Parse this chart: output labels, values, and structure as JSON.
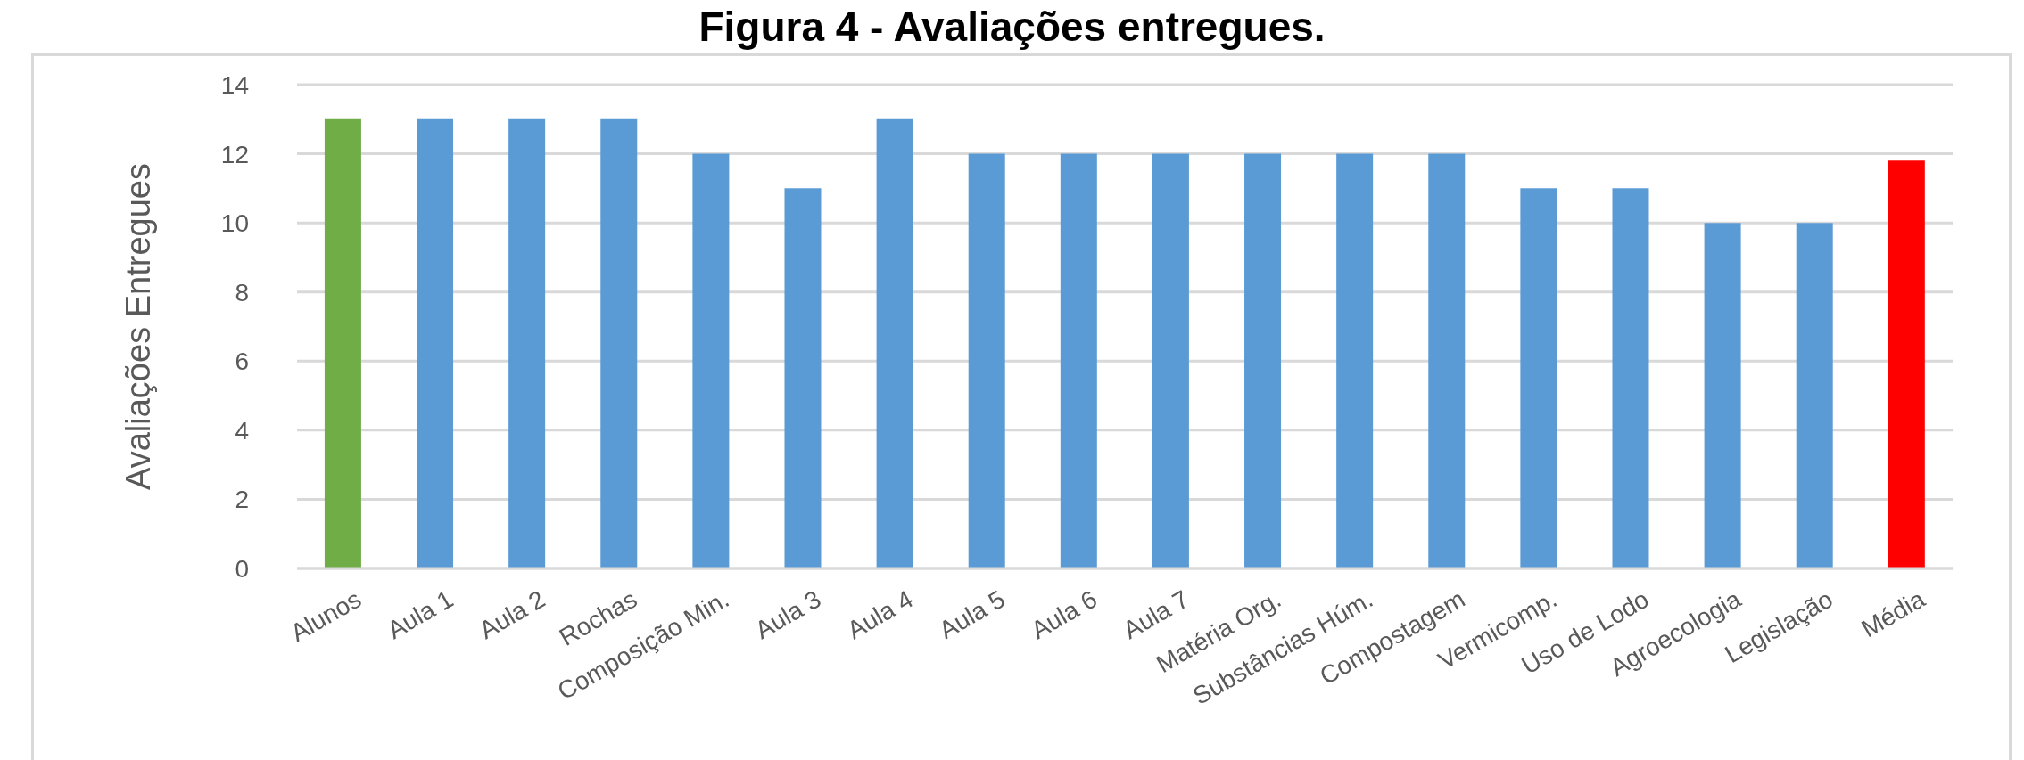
{
  "chart_data": {
    "type": "bar",
    "title": "Figura 4 - Avaliações entregues.",
    "ylabel": "Avaliações Entregues",
    "categories": [
      "Alunos",
      "Aula 1",
      "Aula 2",
      "Rochas",
      "Composição Min.",
      "Aula 3",
      "Aula 4",
      "Aula 5",
      "Aula 6",
      "Aula 7",
      "Matéria Org.",
      "Substâncias Húm.",
      "Compostagem",
      "Vermicomp.",
      "Uso de Lodo",
      "Agroecologia",
      "Legislação",
      "Média"
    ],
    "values": [
      13,
      13,
      13,
      13,
      12,
      11,
      13,
      12,
      12,
      12,
      12,
      12,
      12,
      11,
      11,
      10,
      10,
      11.8
    ],
    "colors": [
      "#70ad47",
      "#5b9bd5",
      "#5b9bd5",
      "#5b9bd5",
      "#5b9bd5",
      "#5b9bd5",
      "#5b9bd5",
      "#5b9bd5",
      "#5b9bd5",
      "#5b9bd5",
      "#5b9bd5",
      "#5b9bd5",
      "#5b9bd5",
      "#5b9bd5",
      "#5b9bd5",
      "#5b9bd5",
      "#5b9bd5",
      "#ff0000"
    ],
    "ylim": [
      0,
      14
    ],
    "yticks": [
      0,
      2,
      4,
      6,
      8,
      10,
      12,
      14
    ],
    "grid": "y"
  }
}
